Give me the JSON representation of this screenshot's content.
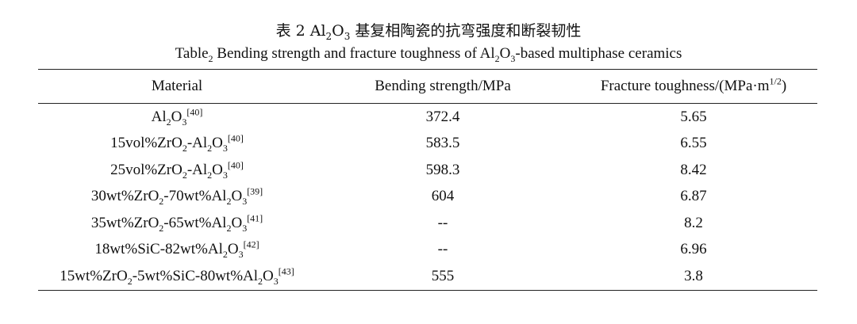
{
  "caption": {
    "chinese": "表 2 Al2O3 基复相陶瓷的抗弯强度和断裂韧性",
    "english": "Table2 Bending strength and fracture toughness of Al2O3-based multiphase ceramics"
  },
  "table": {
    "header": [
      "Material",
      "Bending strength/MPa",
      "Fracture toughness/(MPa·m1/2)"
    ],
    "rows": [
      [
        "Al2O3[40]",
        "372.4",
        "5.65"
      ],
      [
        "15vol%ZrO2-Al2O3[40]",
        "583.5",
        "6.55"
      ],
      [
        "25vol%ZrO2-Al2O3[40]",
        "598.3",
        "8.42"
      ],
      [
        "30wt%ZrO2-70wt%Al2O3[39]",
        "604",
        "6.87"
      ],
      [
        "35wt%ZrO2-65wt%Al2O3[41]",
        "--",
        "8.2"
      ],
      [
        "18wt%SiC-82wt%Al2O3[42]",
        "--",
        "6.96"
      ],
      [
        "15wt%ZrO2-5wt%SiC-80wt%Al2O3[43]",
        "555",
        "3.8"
      ]
    ]
  }
}
